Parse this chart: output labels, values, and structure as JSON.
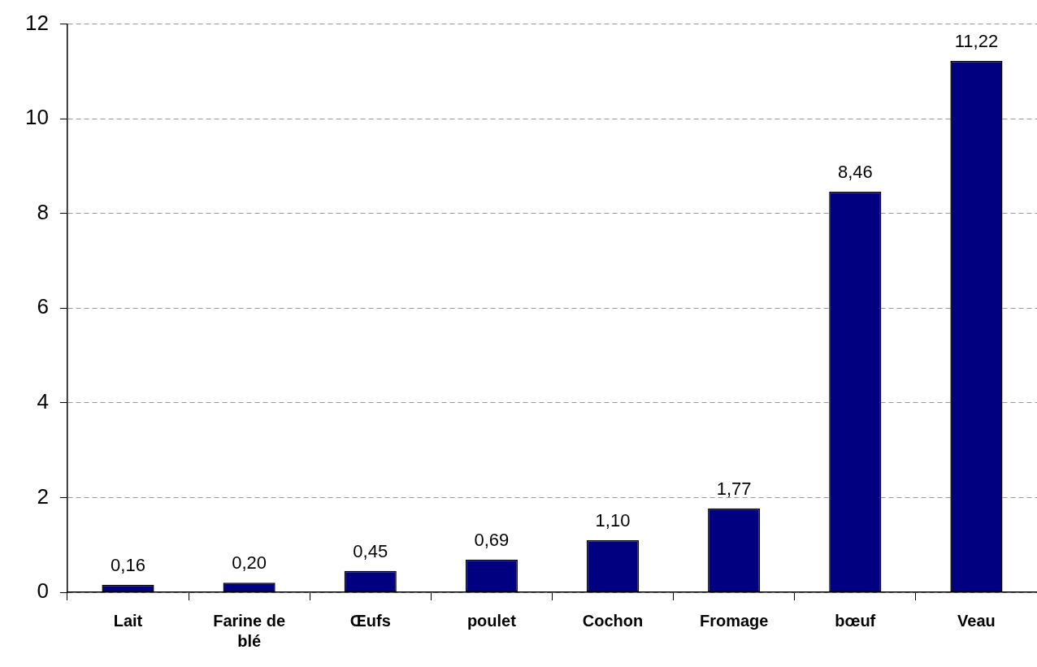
{
  "chart_data": {
    "type": "bar",
    "categories": [
      "Lait",
      "Farine de blé",
      "Œufs",
      "poulet",
      "Cochon",
      "Fromage",
      "bœuf",
      "Veau"
    ],
    "values": [
      0.16,
      0.2,
      0.45,
      0.69,
      1.1,
      1.77,
      8.46,
      11.22
    ],
    "value_labels": [
      "0,16",
      "0,20",
      "0,45",
      "0,69",
      "1,10",
      "1,77",
      "8,46",
      "11,22"
    ],
    "color": "#000080",
    "ylim": [
      0,
      12
    ],
    "yticks": [
      0,
      2,
      4,
      6,
      8,
      10,
      12
    ],
    "grid": "y"
  }
}
